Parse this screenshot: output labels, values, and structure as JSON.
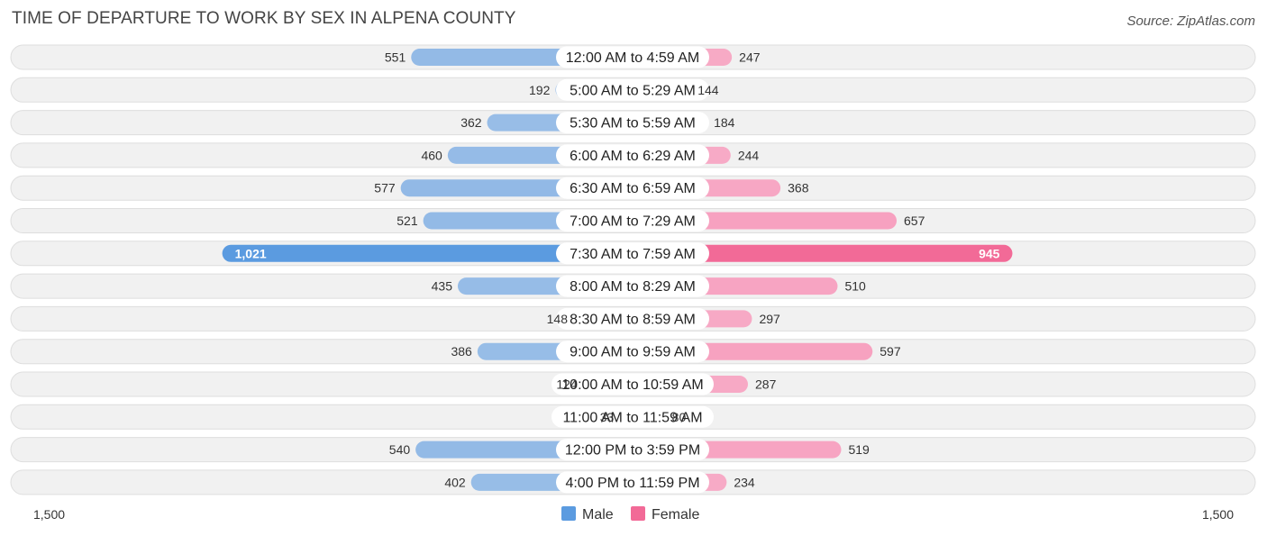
{
  "title": "TIME OF DEPARTURE TO WORK BY SEX IN ALPENA COUNTY",
  "source": "Source: ZipAtlas.com",
  "colors": {
    "male": "#6fa3de",
    "male_strong": "#5b9be0",
    "female": "#f590b4",
    "female_strong": "#f26a97",
    "row_bg": "#f1f1f1",
    "row_border": "#dedede"
  },
  "chart_data": {
    "type": "bar",
    "orientation": "horizontal-diverging",
    "categories": [
      "12:00 AM to 4:59 AM",
      "5:00 AM to 5:29 AM",
      "5:30 AM to 5:59 AM",
      "6:00 AM to 6:29 AM",
      "6:30 AM to 6:59 AM",
      "7:00 AM to 7:29 AM",
      "7:30 AM to 7:59 AM",
      "8:00 AM to 8:29 AM",
      "8:30 AM to 8:59 AM",
      "9:00 AM to 9:59 AM",
      "10:00 AM to 10:59 AM",
      "11:00 AM to 11:59 AM",
      "12:00 PM to 3:59 PM",
      "4:00 PM to 11:59 PM"
    ],
    "series": [
      {
        "name": "Male",
        "values": [
          551,
          192,
          362,
          460,
          577,
          521,
          1021,
          435,
          148,
          386,
          124,
          33,
          540,
          402
        ],
        "labels": [
          "551",
          "192",
          "362",
          "460",
          "577",
          "521",
          "1,021",
          "435",
          "148",
          "386",
          "124",
          "33",
          "540",
          "402"
        ]
      },
      {
        "name": "Female",
        "values": [
          247,
          144,
          184,
          244,
          368,
          657,
          945,
          510,
          297,
          597,
          287,
          80,
          519,
          234
        ],
        "labels": [
          "247",
          "144",
          "184",
          "244",
          "368",
          "657",
          "945",
          "510",
          "297",
          "597",
          "287",
          "80",
          "519",
          "234"
        ]
      }
    ],
    "xlim": [
      -1500,
      1500
    ],
    "axis_labels": {
      "left": "1,500",
      "right": "1,500"
    },
    "legend": {
      "position": "bottom-center",
      "entries": [
        "Male",
        "Female"
      ]
    }
  }
}
